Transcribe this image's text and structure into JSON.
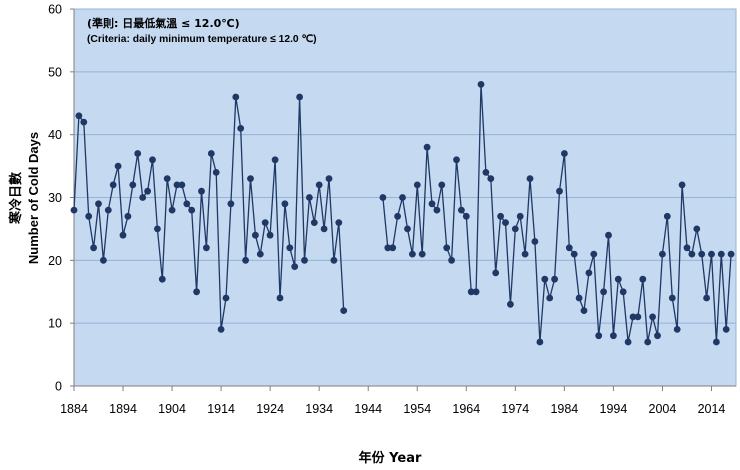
{
  "chart_data": {
    "type": "line",
    "annotations": [
      "(準則: 日最低氣溫 ≤ 12.0℃)",
      "(Criteria: daily minimum temperature ≤ 12.0 ℃)"
    ],
    "ylabel": [
      "寒冷日數",
      "Number of Cold Days"
    ],
    "xlabel": "年份 Year",
    "xlim": [
      1884,
      2019
    ],
    "ylim": [
      0,
      60
    ],
    "x_ticks": [
      1884,
      1894,
      1904,
      1914,
      1924,
      1934,
      1944,
      1954,
      1964,
      1974,
      1984,
      1994,
      2004,
      2014
    ],
    "y_ticks": [
      0,
      10,
      20,
      30,
      40,
      50,
      60
    ],
    "grid": true,
    "colors": {
      "plot_background": "#c5d9f1",
      "gridline": "#95b3d7",
      "series": "#1f3864",
      "axis": "#7f7f7f"
    },
    "x": [
      1884,
      1885,
      1886,
      1887,
      1888,
      1889,
      1890,
      1891,
      1892,
      1893,
      1894,
      1895,
      1896,
      1897,
      1898,
      1899,
      1900,
      1901,
      1902,
      1903,
      1904,
      1905,
      1906,
      1907,
      1908,
      1909,
      1910,
      1911,
      1912,
      1913,
      1914,
      1915,
      1916,
      1917,
      1918,
      1919,
      1920,
      1921,
      1922,
      1923,
      1924,
      1925,
      1926,
      1927,
      1928,
      1929,
      1930,
      1931,
      1932,
      1933,
      1934,
      1935,
      1936,
      1937,
      1938,
      1939,
      1940,
      1941,
      1942,
      1943,
      1944,
      1945,
      1946,
      1947,
      1948,
      1949,
      1950,
      1951,
      1952,
      1953,
      1954,
      1955,
      1956,
      1957,
      1958,
      1959,
      1960,
      1961,
      1962,
      1963,
      1964,
      1965,
      1966,
      1967,
      1968,
      1969,
      1970,
      1971,
      1972,
      1973,
      1974,
      1975,
      1976,
      1977,
      1978,
      1979,
      1980,
      1981,
      1982,
      1983,
      1984,
      1985,
      1986,
      1987,
      1988,
      1989,
      1990,
      1991,
      1992,
      1993,
      1994,
      1995,
      1996,
      1997,
      1998,
      1999,
      2000,
      2001,
      2002,
      2003,
      2004,
      2005,
      2006,
      2007,
      2008,
      2009,
      2010,
      2011,
      2012,
      2013,
      2014,
      2015,
      2016,
      2017,
      2018
    ],
    "series": [
      {
        "values": [
          28,
          43,
          42,
          27,
          22,
          29,
          20,
          28,
          32,
          35,
          24,
          27,
          32,
          37,
          30,
          31,
          36,
          25,
          17,
          33,
          28,
          32,
          32,
          29,
          28,
          15,
          31,
          22,
          37,
          34,
          9,
          14,
          29,
          46,
          41,
          20,
          33,
          24,
          21,
          26,
          24,
          36,
          14,
          29,
          22,
          19,
          46,
          20,
          30,
          26,
          32,
          25,
          33,
          20,
          26,
          12,
          null,
          null,
          null,
          null,
          null,
          null,
          null,
          30,
          22,
          22,
          27,
          30,
          25,
          21,
          32,
          21,
          38,
          29,
          28,
          32,
          22,
          20,
          36,
          28,
          27,
          15,
          15,
          48,
          34,
          33,
          18,
          27,
          26,
          13,
          25,
          27,
          21,
          33,
          23,
          7,
          17,
          14,
          17,
          31,
          37,
          22,
          21,
          14,
          12,
          18,
          21,
          8,
          15,
          24,
          8,
          17,
          15,
          7,
          11,
          11,
          17,
          7,
          11,
          8,
          21,
          27,
          14,
          9,
          32,
          22,
          21,
          25,
          21,
          14,
          21,
          7,
          21,
          9,
          21
        ]
      }
    ]
  }
}
